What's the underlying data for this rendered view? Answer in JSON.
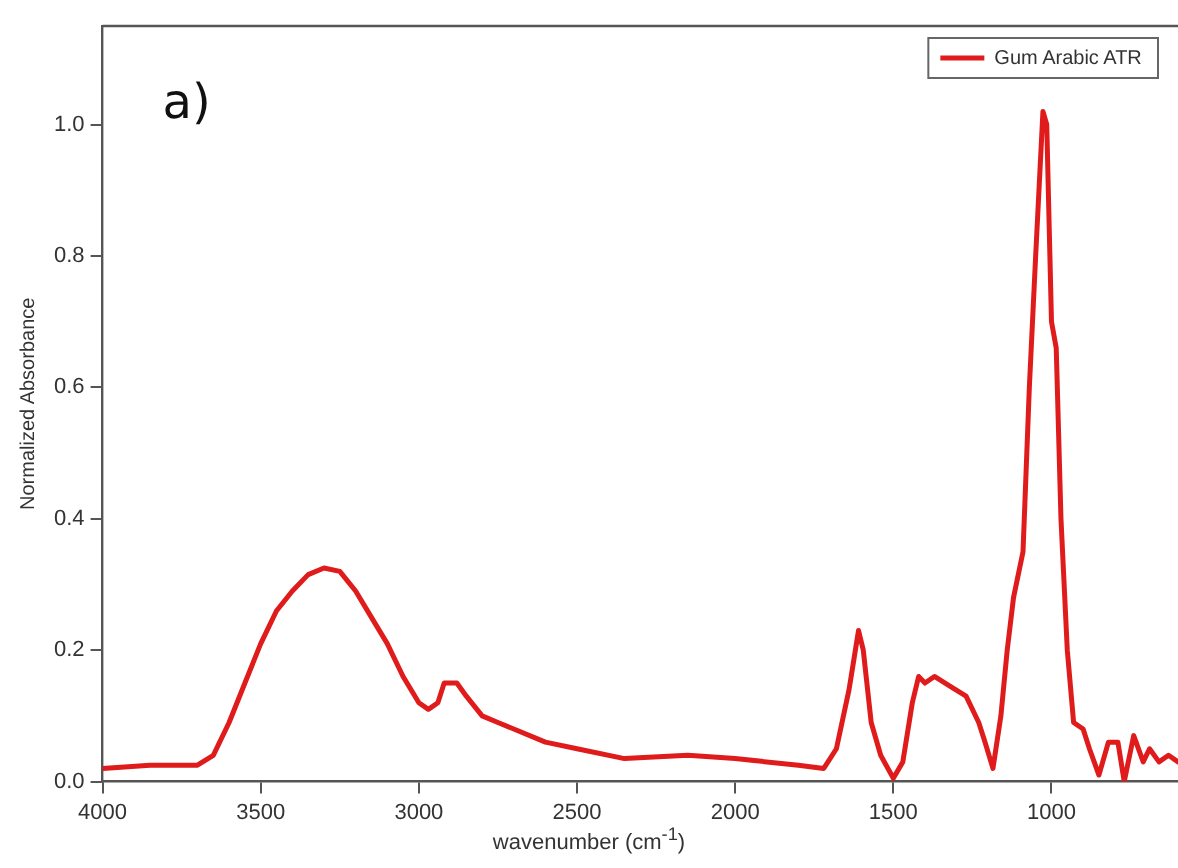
{
  "chart_data": {
    "type": "line",
    "xlabel": "wavenumber (cm$^{-1}$)",
    "ylabel": "Normalized Absorbance",
    "annotations": [
      "a)"
    ],
    "xlim": [
      4000,
      600
    ],
    "xticks": [
      4000,
      3500,
      3000,
      2500,
      2000,
      1500,
      1000
    ],
    "ylim": [
      0,
      1.15
    ],
    "yticks": [
      {
        "value": 0,
        "label": "0.0"
      },
      {
        "value": 0.2,
        "label": "0.2"
      },
      {
        "value": 0.4,
        "label": "0.4"
      },
      {
        "value": 0.6,
        "label": "0.6"
      },
      {
        "value": 0.8,
        "label": "0.8"
      },
      {
        "value": 1,
        "label": "1.0"
      }
    ],
    "grid": false,
    "legend": "top right",
    "marker": "none",
    "line_style": "solid",
    "series": [
      {
        "name": "Gum Arabic ATR",
        "color": "#e01b1b",
        "x": [
          4000,
          3850,
          3700,
          3650,
          3600,
          3550,
          3500,
          3450,
          3400,
          3350,
          3300,
          3250,
          3200,
          3150,
          3100,
          3050,
          3000,
          2970,
          2940,
          2920,
          2880,
          2850,
          2800,
          2750,
          2700,
          2600,
          2500,
          2350,
          2150,
          2000,
          1800,
          1720,
          1680,
          1640,
          1610,
          1595,
          1570,
          1540,
          1500,
          1470,
          1440,
          1420,
          1400,
          1370,
          1320,
          1270,
          1230,
          1210,
          1185,
          1160,
          1140,
          1120,
          1090,
          1070,
          1050,
          1027,
          1015,
          1000,
          985,
          970,
          950,
          930,
          900,
          880,
          850,
          820,
          790,
          770,
          740,
          710,
          690,
          660,
          630,
          600
        ],
        "values": [
          0.02,
          0.025,
          0.025,
          0.04,
          0.09,
          0.15,
          0.21,
          0.26,
          0.29,
          0.315,
          0.325,
          0.32,
          0.29,
          0.25,
          0.21,
          0.16,
          0.12,
          0.11,
          0.12,
          0.15,
          0.15,
          0.13,
          0.1,
          0.09,
          0.08,
          0.06,
          0.05,
          0.035,
          0.04,
          0.035,
          0.025,
          0.02,
          0.05,
          0.14,
          0.23,
          0.2,
          0.09,
          0.04,
          0.005,
          0.03,
          0.12,
          0.16,
          0.15,
          0.16,
          0.145,
          0.13,
          0.09,
          0.06,
          0.02,
          0.1,
          0.2,
          0.28,
          0.35,
          0.6,
          0.8,
          1.02,
          1.0,
          0.7,
          0.66,
          0.4,
          0.2,
          0.09,
          0.08,
          0.05,
          0.01,
          0.06,
          0.06,
          0.0,
          0.07,
          0.03,
          0.05,
          0.03,
          0.04,
          0.03
        ]
      }
    ]
  }
}
